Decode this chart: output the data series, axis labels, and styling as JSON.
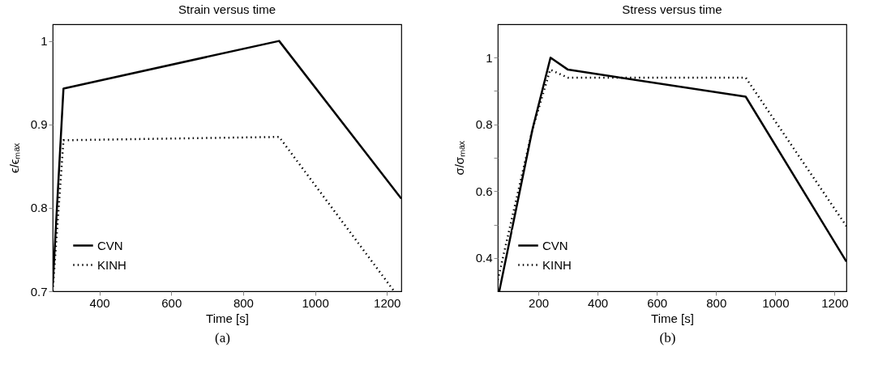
{
  "chart_data": [
    {
      "type": "line",
      "title": "Strain versus time",
      "xlabel": "Time [s]",
      "ylabel": "ϵ/ϵₘₐₓ",
      "annotations": [
        "(a)"
      ],
      "xlim": [
        270,
        1240
      ],
      "ylim": [
        0.7,
        1.02
      ],
      "xticks": [
        400,
        600,
        800,
        1000,
        1200
      ],
      "yticks": [
        0.7,
        0.8,
        0.9,
        1
      ],
      "grid": false,
      "legend": "bottom left",
      "marker": "none",
      "series": [
        {
          "name": "CVN",
          "color": "#000000",
          "line_style": "solid",
          "x": [
            270,
            300,
            900,
            1240
          ],
          "values": [
            0.707,
            0.943,
            1.0,
            0.811
          ]
        },
        {
          "name": "KINH",
          "color": "#000000",
          "line_style": "dotted",
          "x": [
            270,
            300,
            900,
            1220
          ],
          "values": [
            0.7,
            0.881,
            0.885,
            0.7
          ]
        }
      ]
    },
    {
      "type": "line",
      "title": "Stress versus time",
      "xlabel": "Time [s]",
      "ylabel": "σ/σₘₐₓ",
      "annotations": [
        "(b)"
      ],
      "xlim": [
        63,
        1240
      ],
      "ylim": [
        0.3,
        1.1
      ],
      "xticks": [
        200,
        400,
        600,
        800,
        1000,
        1200
      ],
      "yticks": [
        0.4,
        {
          "value": 0.5,
          "label": null
        },
        0.6,
        {
          "value": 0.7,
          "label": null
        },
        0.8,
        {
          "value": 0.9,
          "label": null
        },
        1
      ],
      "grid": false,
      "legend": "bottom left",
      "marker": "none",
      "series": [
        {
          "name": "CVN",
          "color": "#000000",
          "line_style": "solid",
          "x": [
            68,
            180,
            241,
            300,
            900,
            1240
          ],
          "values": [
            0.3,
            0.785,
            1.0,
            0.964,
            0.883,
            0.389
          ]
        },
        {
          "name": "KINH",
          "color": "#000000",
          "line_style": "dotted",
          "x": [
            63,
            180,
            240,
            300,
            900,
            1240
          ],
          "values": [
            0.334,
            0.785,
            0.964,
            0.94,
            0.94,
            0.495
          ]
        }
      ]
    }
  ]
}
